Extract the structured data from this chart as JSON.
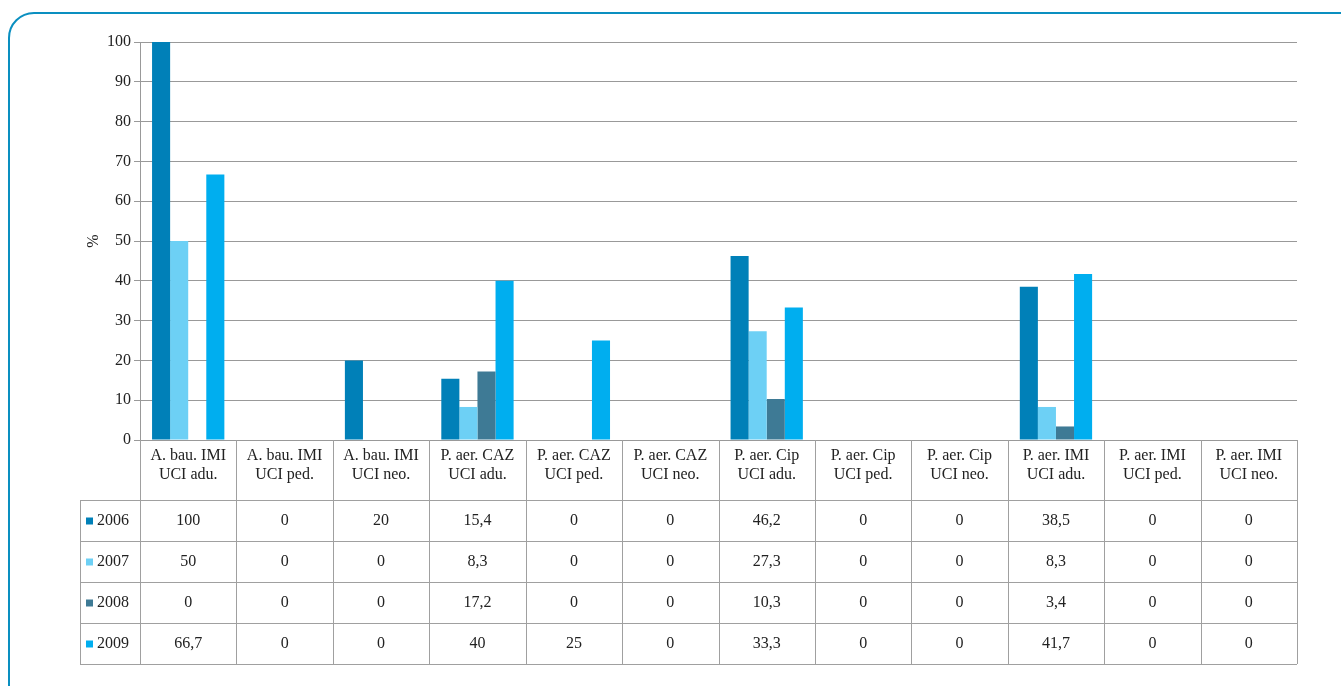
{
  "chart_data": {
    "type": "bar",
    "ylabel": "%",
    "categories": [
      "A. bau. IMI UCI adu.",
      "A. bau. IMI UCI ped.",
      "A. bau. IMI UCI neo.",
      "P. aer. CAZ UCI adu.",
      "P. aer. CAZ UCI ped.",
      "P. aer. CAZ UCI neo.",
      "P. aer. Cip UCI adu.",
      "P. aer. Cip UCI ped.",
      "P. aer. Cip UCI neo.",
      "P. aer. IMI UCI adu.",
      "P. aer. IMI UCI ped.",
      "P. aer. IMI UCI neo."
    ],
    "series": [
      {
        "name": "2006",
        "color": "#0080b8",
        "values": [
          100,
          0,
          20,
          15.4,
          0,
          0,
          46.2,
          0,
          0,
          38.5,
          0,
          0
        ],
        "value_labels": [
          "100",
          "0",
          "20",
          "15,4",
          "0",
          "0",
          "46,2",
          "0",
          "0",
          "38,5",
          "0",
          "0"
        ]
      },
      {
        "name": "2007",
        "color": "#6dd0f5",
        "values": [
          50,
          0,
          0,
          8.3,
          0,
          0,
          27.3,
          0,
          0,
          8.3,
          0,
          0
        ],
        "value_labels": [
          "50",
          "0",
          "0",
          "8,3",
          "0",
          "0",
          "27,3",
          "0",
          "0",
          "8,3",
          "0",
          "0"
        ]
      },
      {
        "name": "2008",
        "color": "#3e7a95",
        "values": [
          0,
          0,
          0,
          17.2,
          0,
          0,
          10.3,
          0,
          0,
          3.4,
          0,
          0
        ],
        "value_labels": [
          "0",
          "0",
          "0",
          "17,2",
          "0",
          "0",
          "10,3",
          "0",
          "0",
          "3,4",
          "0",
          "0"
        ]
      },
      {
        "name": "2009",
        "color": "#00aeef",
        "values": [
          66.7,
          0,
          0,
          40,
          25,
          0,
          33.3,
          0,
          0,
          41.7,
          0,
          0
        ],
        "value_labels": [
          "66,7",
          "0",
          "0",
          "40",
          "25",
          "0",
          "33,3",
          "0",
          "0",
          "41,7",
          "0",
          "0"
        ]
      }
    ],
    "ylim": [
      0,
      100
    ],
    "yticks": [
      0,
      10,
      20,
      30,
      40,
      50,
      60,
      70,
      80,
      90,
      100
    ],
    "grid": "y",
    "legend": "bottom"
  }
}
